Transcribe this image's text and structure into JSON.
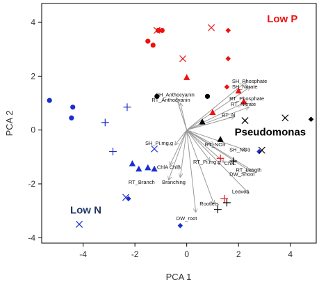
{
  "chart_data": {
    "type": "scatter",
    "subtype": "pca-biplot",
    "xlabel": "PCA 1",
    "ylabel": "PCA 2",
    "xlim": [
      -5.6,
      5.0
    ],
    "ylim": [
      -4.2,
      4.7
    ],
    "xticks": [
      -4,
      -2,
      0,
      2,
      4
    ],
    "yticks": [
      -4,
      -2,
      0,
      2,
      4
    ],
    "grid": false,
    "colors": {
      "red": "#ee1111",
      "blue": "#1a2fd0",
      "black": "#000000",
      "arrow": "#9a9a9a",
      "low_p_label": "#ee1111",
      "low_n_label": "#1f3864",
      "pseudomonas_label": "#000000"
    },
    "group_labels": [
      {
        "text": "Low P",
        "x": 3.1,
        "y": 4.0,
        "color": "red"
      },
      {
        "text": "Low N",
        "x": -4.5,
        "y": -3.1,
        "color": "blue"
      },
      {
        "text": "Pseudomonas",
        "x": 1.85,
        "y": -0.2,
        "color": "black"
      }
    ],
    "points": [
      {
        "x": -1.5,
        "y": 3.3,
        "marker": "circle",
        "color": "red"
      },
      {
        "x": -1.3,
        "y": 3.15,
        "marker": "circle",
        "color": "red"
      },
      {
        "x": -1.1,
        "y": 3.7,
        "marker": "circle",
        "color": "red"
      },
      {
        "x": -0.95,
        "y": 3.7,
        "marker": "circle",
        "color": "red"
      },
      {
        "x": -1.15,
        "y": 3.7,
        "marker": "x",
        "color": "red"
      },
      {
        "x": -0.15,
        "y": 2.65,
        "marker": "x",
        "color": "red"
      },
      {
        "x": 0.95,
        "y": 3.8,
        "marker": "x",
        "color": "red"
      },
      {
        "x": 1.6,
        "y": 3.7,
        "marker": "diamond",
        "color": "red"
      },
      {
        "x": 1.6,
        "y": 2.65,
        "marker": "diamond",
        "color": "red"
      },
      {
        "x": 1.55,
        "y": 1.6,
        "marker": "diamond",
        "color": "red"
      },
      {
        "x": 0.0,
        "y": 1.95,
        "marker": "triangle",
        "color": "red"
      },
      {
        "x": 1.0,
        "y": 0.65,
        "marker": "triangle",
        "color": "red"
      },
      {
        "x": 2.0,
        "y": 1.45,
        "marker": "triangle",
        "color": "red"
      },
      {
        "x": 2.2,
        "y": 1.05,
        "marker": "triangle",
        "color": "red"
      },
      {
        "x": 1.3,
        "y": -1.05,
        "marker": "plus",
        "color": "red"
      },
      {
        "x": 1.45,
        "y": -2.55,
        "marker": "plus",
        "color": "red"
      },
      {
        "x": -5.3,
        "y": 1.1,
        "marker": "circle",
        "color": "blue"
      },
      {
        "x": -4.4,
        "y": 0.85,
        "marker": "circle",
        "color": "blue"
      },
      {
        "x": -4.45,
        "y": 0.45,
        "marker": "circle",
        "color": "blue"
      },
      {
        "x": -2.3,
        "y": 0.85,
        "marker": "plus",
        "color": "blue"
      },
      {
        "x": -3.15,
        "y": 0.28,
        "marker": "plus",
        "color": "blue"
      },
      {
        "x": -2.85,
        "y": -0.8,
        "marker": "plus",
        "color": "blue"
      },
      {
        "x": -1.25,
        "y": -0.7,
        "marker": "x",
        "color": "blue"
      },
      {
        "x": -2.35,
        "y": -2.5,
        "marker": "x",
        "color": "blue"
      },
      {
        "x": -4.15,
        "y": -3.5,
        "marker": "x",
        "color": "blue"
      },
      {
        "x": -2.1,
        "y": -1.25,
        "marker": "triangle",
        "color": "blue"
      },
      {
        "x": -1.85,
        "y": -1.45,
        "marker": "triangle",
        "color": "blue"
      },
      {
        "x": -1.5,
        "y": -1.4,
        "marker": "triangle",
        "color": "blue"
      },
      {
        "x": -1.25,
        "y": -1.45,
        "marker": "triangle",
        "color": "blue"
      },
      {
        "x": -2.25,
        "y": -2.55,
        "marker": "diamond",
        "color": "blue"
      },
      {
        "x": -0.25,
        "y": -3.55,
        "marker": "diamond",
        "color": "blue"
      },
      {
        "x": 2.8,
        "y": -0.8,
        "marker": "diamond",
        "color": "blue"
      },
      {
        "x": -1.15,
        "y": 1.25,
        "marker": "circle",
        "color": "black"
      },
      {
        "x": 0.8,
        "y": 1.25,
        "marker": "circle",
        "color": "black"
      },
      {
        "x": 0.6,
        "y": 0.3,
        "marker": "triangle",
        "color": "black"
      },
      {
        "x": 1.3,
        "y": -0.35,
        "marker": "triangle",
        "color": "black"
      },
      {
        "x": 2.25,
        "y": 0.35,
        "marker": "x",
        "color": "black"
      },
      {
        "x": 3.8,
        "y": 0.45,
        "marker": "x",
        "color": "black"
      },
      {
        "x": 2.9,
        "y": -0.75,
        "marker": "x",
        "color": "black"
      },
      {
        "x": 4.8,
        "y": 0.4,
        "marker": "diamond",
        "color": "black"
      },
      {
        "x": 1.2,
        "y": -2.95,
        "marker": "plus",
        "color": "black"
      },
      {
        "x": 1.55,
        "y": -2.7,
        "marker": "plus",
        "color": "black"
      },
      {
        "x": 1.8,
        "y": -1.15,
        "marker": "plus",
        "color": "black"
      }
    ],
    "loadings": [
      {
        "label": "SH_Anthocyanin",
        "x": -0.4,
        "y": 1.2
      },
      {
        "label": "RT_Anthocyanin",
        "x": -0.25,
        "y": 1.0
      },
      {
        "label": "SH_Phosphate",
        "x": 2.3,
        "y": 1.8
      },
      {
        "label": "SH_Nitrate",
        "x": 2.45,
        "y": 1.6
      },
      {
        "label": "RT_Phosphate",
        "x": 2.3,
        "y": 1.05
      },
      {
        "label": "RT_Nitrate",
        "x": 2.4,
        "y": 0.85
      },
      {
        "label": "RT_N",
        "x": 1.85,
        "y": 0.5
      },
      {
        "label": "SH_Pi.mg.g",
        "x": -0.45,
        "y": -0.55
      },
      {
        "label": "RT_NO3",
        "x": 1.05,
        "y": -0.55
      },
      {
        "label": "SH_NO3",
        "x": 2.3,
        "y": -0.75
      },
      {
        "label": "RT_Pi.mg.g",
        "x": 0.9,
        "y": -1.15
      },
      {
        "label": "ChlA ChlB",
        "x": -0.65,
        "y": -1.3
      },
      {
        "label": "ChlC",
        "x": 1.45,
        "y": -1.2
      },
      {
        "label": "RT_Length",
        "x": 2.4,
        "y": -1.5
      },
      {
        "label": "DW_Shoot",
        "x": 2.6,
        "y": -1.55
      },
      {
        "label": "RT_Branching",
        "x": -0.25,
        "y": -1.75
      },
      {
        "label": "RT_Branch",
        "x": -0.7,
        "y": -1.85
      },
      {
        "label": "Leaves",
        "x": 2.4,
        "y": -2.35
      },
      {
        "label": "Rootlets",
        "x": 1.05,
        "y": -2.75
      },
      {
        "label": "DW_root",
        "x": 0.35,
        "y": -3.05
      }
    ],
    "label_texts": [
      {
        "text": "SH_Anthocyanin",
        "x": -1.2,
        "y": 1.25,
        "anchor": "start"
      },
      {
        "text": "RT_Anthocyanin",
        "x": -1.35,
        "y": 1.05,
        "anchor": "start"
      },
      {
        "text": "SH_Phosphate",
        "x": 1.75,
        "y": 1.75,
        "anchor": "start"
      },
      {
        "text": "SH_Nitrate",
        "x": 1.75,
        "y": 1.55,
        "anchor": "start"
      },
      {
        "text": "RT_Phosphate",
        "x": 1.65,
        "y": 1.1,
        "anchor": "start"
      },
      {
        "text": "RT_Nitrate",
        "x": 1.7,
        "y": 0.9,
        "anchor": "start"
      },
      {
        "text": "RT_N",
        "x": 1.35,
        "y": 0.5,
        "anchor": "start"
      },
      {
        "text": "SH_Pi.mg.g",
        "x": -1.6,
        "y": -0.55,
        "anchor": "start"
      },
      {
        "text": "RT_NO3",
        "x": 0.7,
        "y": -0.6,
        "anchor": "start"
      },
      {
        "text": "SH_NO3",
        "x": 1.65,
        "y": -0.8,
        "anchor": "start"
      },
      {
        "text": "RT_Pi.mg.g",
        "x": 0.25,
        "y": -1.25,
        "anchor": "start"
      },
      {
        "text": "ChlC",
        "x": 1.45,
        "y": -1.3,
        "anchor": "start"
      },
      {
        "text": "ChlA ChlB",
        "x": -1.15,
        "y": -1.45,
        "anchor": "start"
      },
      {
        "text": "RT_Length",
        "x": 1.9,
        "y": -1.55,
        "anchor": "start"
      },
      {
        "text": "DW_Shoot",
        "x": 1.65,
        "y": -1.7,
        "anchor": "start"
      },
      {
        "text": "RT_Branch",
        "x": -2.25,
        "y": -2.0,
        "anchor": "start"
      },
      {
        "text": "Branching",
        "x": -0.5,
        "y": -2.0,
        "anchor": "middle"
      },
      {
        "text": "Leaves",
        "x": 1.75,
        "y": -2.35,
        "anchor": "start"
      },
      {
        "text": "Rootlets",
        "x": 0.5,
        "y": -2.8,
        "anchor": "start"
      },
      {
        "text": "DW_root",
        "x": -0.4,
        "y": -3.35,
        "anchor": "start"
      }
    ]
  }
}
